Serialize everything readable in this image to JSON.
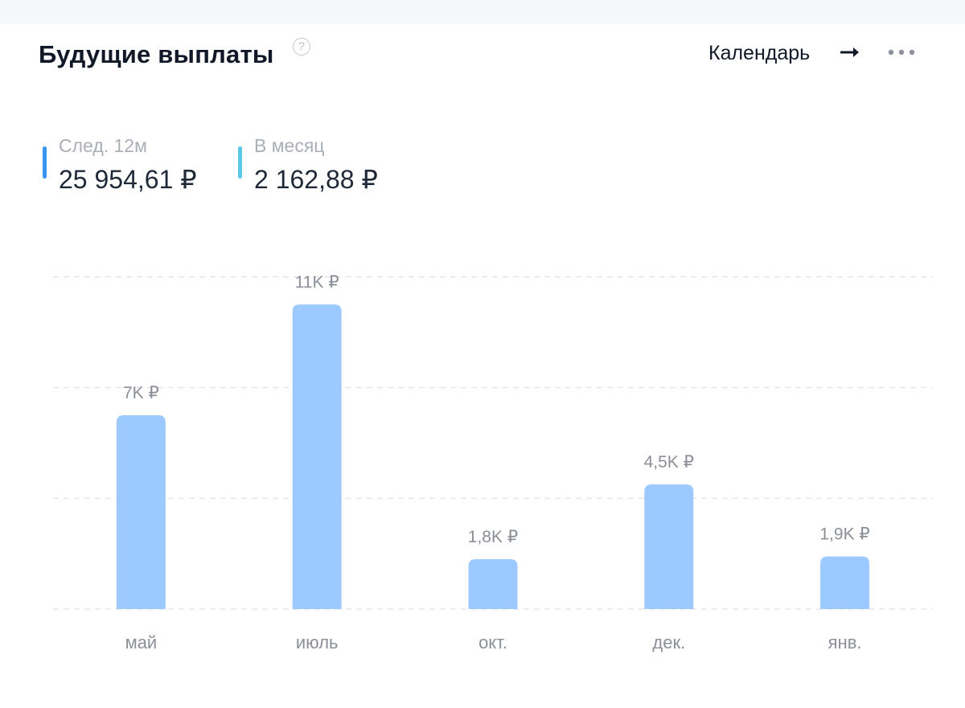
{
  "header": {
    "title": "Будущие выплаты",
    "help_glyph": "?",
    "calendar_label": "Календарь"
  },
  "stats": [
    {
      "label": "След. 12м",
      "value": "25 954,61 ₽",
      "color": "#3b93f0"
    },
    {
      "label": "В месяц",
      "value": "2 162,88 ₽",
      "color": "#5ac8e6"
    }
  ],
  "colors": {
    "bar": "#9cc9ff",
    "grid": "#e3e6ea",
    "bar_label": "#8a8f98",
    "axis_label": "#8a8f98"
  },
  "icons": {
    "help": "question-circle-icon",
    "arrow": "arrow-right-icon",
    "more": "more-dots-icon"
  },
  "chart_data": {
    "type": "bar",
    "categories": [
      "май",
      "июль",
      "окт.",
      "дек.",
      "янв."
    ],
    "values": [
      7000,
      11000,
      1800,
      4500,
      1900
    ],
    "data_labels": [
      "7K ₽",
      "11K ₽",
      "1,8K ₽",
      "4,5K ₽",
      "1,9K ₽"
    ],
    "title": "",
    "xlabel": "",
    "ylabel": "",
    "ylim": [
      0,
      12000
    ],
    "grid": true
  }
}
